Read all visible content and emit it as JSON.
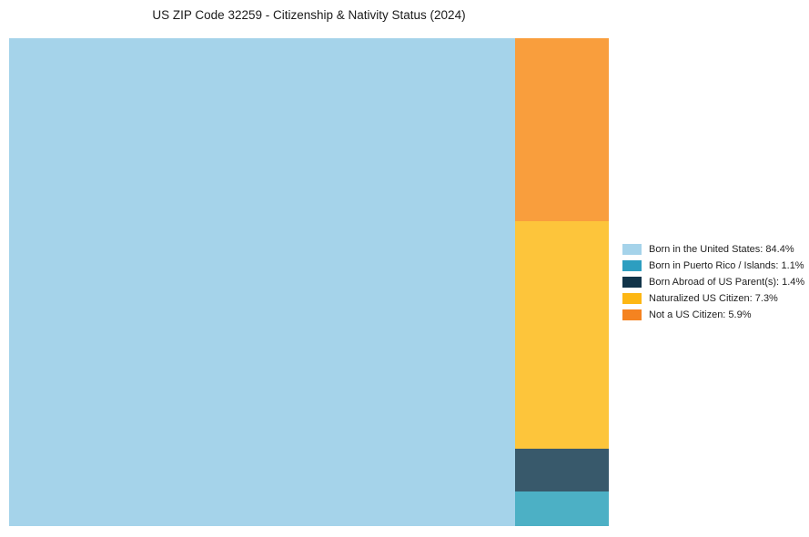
{
  "header": {
    "title": "US ZIP Code 32259 - Citizenship & Nativity Status (2024)"
  },
  "chart_data": {
    "type": "treemap",
    "title": "US ZIP Code 32259 - Citizenship & Nativity Status (2024)",
    "unit": "percent",
    "categories": [
      "Born in the United States",
      "Born in Puerto Rico / Islands",
      "Born Abroad of US Parent(s)",
      "Naturalized US Citizen",
      "Not a US Citizen"
    ],
    "values": [
      84.4,
      1.1,
      1.4,
      7.3,
      5.9
    ],
    "legend_position": "right",
    "layout_hint": "single large block fills left side; right column stacked top-to-bottom: Not a US Citizen, Naturalized US Citizen, Born Abroad of US Parent(s), Born in Puerto Rico / Islands"
  },
  "treemap": {
    "main_block": {
      "label": "Born in the United States",
      "value": 84.4,
      "color": "#A5D3EA"
    },
    "column_blocks": [
      {
        "label": "Not a US Citizen",
        "value": 5.9,
        "color": "#F99E3D"
      },
      {
        "label": "Naturalized US Citizen",
        "value": 7.3,
        "color": "#FDC53B"
      },
      {
        "label": "Born Abroad of US Parent(s)",
        "value": 1.4,
        "color": "#38596B"
      },
      {
        "label": "Born in Puerto Rico / Islands",
        "value": 1.1,
        "color": "#4CB0C5"
      }
    ]
  },
  "legend": {
    "items": [
      {
        "label": "Born in the United States: 84.4%",
        "color": "#A5D3EA"
      },
      {
        "label": "Born in Puerto Rico / Islands: 1.1%",
        "color": "#2D9EC0"
      },
      {
        "label": "Born Abroad of US Parent(s): 1.4%",
        "color": "#113449"
      },
      {
        "label": "Naturalized US Citizen: 7.3%",
        "color": "#FDB714"
      },
      {
        "label": "Not a US Citizen: 5.9%",
        "color": "#F58320"
      }
    ]
  }
}
